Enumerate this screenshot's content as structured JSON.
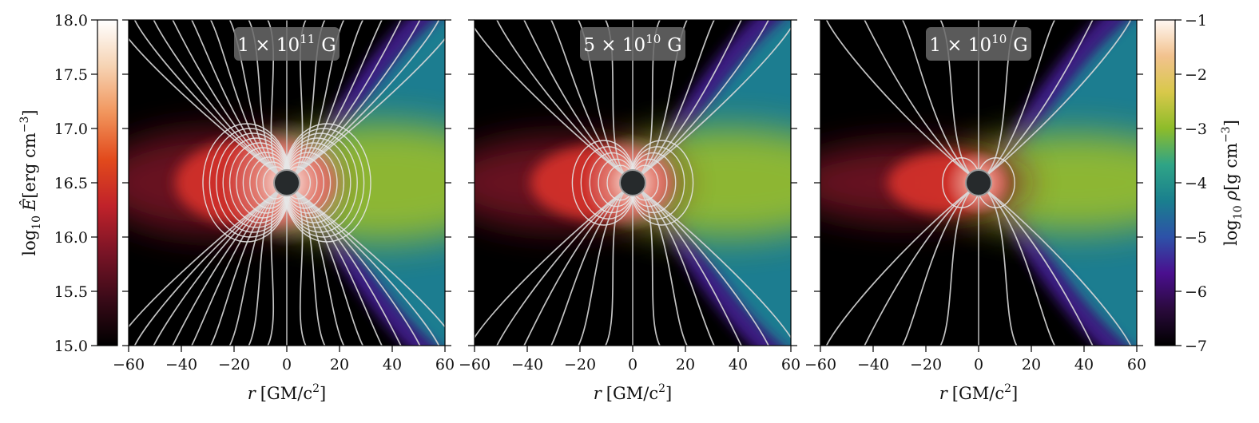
{
  "chart_data": {
    "type": "heatmap",
    "panels": [
      {
        "label_base": "1 × 10",
        "label_exp": "11",
        "label_unit": "G",
        "field_lines": 9,
        "loops": 10,
        "strength": 1.0
      },
      {
        "label_base": "5 × 10",
        "label_exp": "10",
        "label_unit": "G",
        "field_lines": 6,
        "loops": 5,
        "strength": 0.7
      },
      {
        "label_base": "1 × 10",
        "label_exp": "10",
        "label_unit": "G",
        "field_lines": 4,
        "loops": 1,
        "strength": 0.35
      }
    ],
    "x_axis": {
      "label_var": "r",
      "label_unit": "[GM/c",
      "label_sup": "2",
      "label_close": "]",
      "range": [
        -60,
        60
      ],
      "ticks": [
        -60,
        -40,
        -20,
        0,
        20,
        40,
        60
      ],
      "tick_labels": [
        "−60",
        "−40",
        "−20",
        "0",
        "20",
        "40",
        "60"
      ]
    },
    "left_colorbar": {
      "label_pre": "log",
      "label_sub": "10",
      "label_var": "Ê",
      "label_unit": "[erg cm",
      "label_sup": "−3",
      "label_close": "]",
      "range": [
        15.0,
        18.0
      ],
      "ticks": [
        15.0,
        15.5,
        16.0,
        16.5,
        17.0,
        17.5,
        18.0
      ],
      "tick_labels": [
        "15.0",
        "15.5",
        "16.0",
        "16.5",
        "17.0",
        "17.5",
        "18.0"
      ],
      "colormap": [
        "#000000",
        "#3a0a18",
        "#7a1426",
        "#c0222a",
        "#e24a1c",
        "#f1955c",
        "#f6d3b3",
        "#ffffff"
      ]
    },
    "right_colorbar": {
      "label_pre": "log",
      "label_sub": "10",
      "label_var": "ρ",
      "label_unit": "[g cm",
      "label_sup": "−3",
      "label_close": "]",
      "range": [
        -7,
        -1
      ],
      "ticks": [
        -7,
        -6,
        -5,
        -4,
        -3,
        -2,
        -1
      ],
      "tick_labels": [
        "−7",
        "−6",
        "−5",
        "−4",
        "−3",
        "−2",
        "−1"
      ],
      "colormap": [
        "#000000",
        "#2a0a3c",
        "#4a0f8f",
        "#2d52a8",
        "#1a7f8e",
        "#2fa486",
        "#8dbc2a",
        "#d8c84a",
        "#f2c28e",
        "#fff7f2"
      ]
    }
  }
}
